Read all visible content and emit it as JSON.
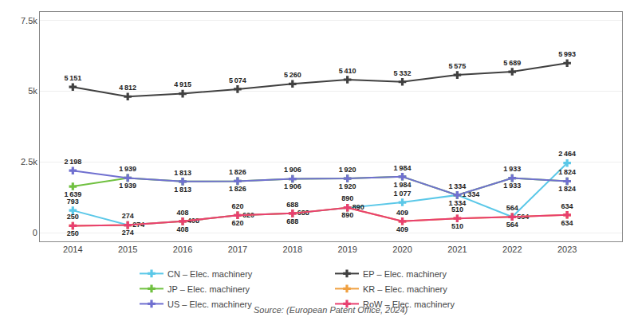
{
  "chart_data": {
    "type": "line",
    "annotations": [
      "Source: (European Patent Office, 2024)"
    ],
    "x": [
      2014,
      2015,
      2016,
      2017,
      2018,
      2019,
      2020,
      2021,
      2022,
      2023
    ],
    "xlim": [
      2013.4,
      2024.0
    ],
    "xticks": [
      2014,
      2015,
      2016,
      2017,
      2018,
      2019,
      2020,
      2021,
      2022,
      2023
    ],
    "ylim": [
      -300,
      7800
    ],
    "yticks": [
      0,
      {
        "value": 2500,
        "label": "2.5k"
      },
      {
        "value": 5000,
        "label": "5k"
      },
      {
        "value": 7500,
        "label": "7.5k"
      }
    ],
    "grid": true,
    "legend": "bottom",
    "data_labels": true,
    "marker": "plus",
    "line_style": "solid",
    "series": [
      {
        "name": "CN – Elec. machinery",
        "color": "#5BC8E8",
        "values": [
          793,
          274,
          408,
          620,
          688,
          890,
          1077,
          1334,
          564,
          2464
        ],
        "value_labels": [
          "793",
          "274",
          "408",
          "620",
          "688",
          "890",
          "1 077",
          "1 334",
          "564",
          "2 464"
        ]
      },
      {
        "name": "EP – Elec. machinery",
        "color": "#404040",
        "values": [
          5151,
          4812,
          4915,
          5074,
          5260,
          5410,
          5332,
          5575,
          5689,
          5993
        ],
        "value_labels": [
          "5 151",
          "4 812",
          "4 915",
          "5 074",
          "5 260",
          "5 410",
          "5 332",
          "5 575",
          "5 689",
          "5 993"
        ]
      },
      {
        "name": "JP – Elec. machinery",
        "color": "#70C040",
        "values": [
          1639,
          1939,
          1813,
          1826,
          1906,
          1920,
          1984,
          1334,
          1933,
          1824
        ],
        "value_labels": [
          "1 639",
          "1 939",
          "1 813",
          "1 826",
          "1 906",
          "1 920",
          "1 984",
          "1 334",
          "1 933",
          "1 824"
        ]
      },
      {
        "name": "KR – Elec. machinery",
        "color": "#F0A040",
        "values": [
          250,
          274,
          408,
          620,
          688,
          890,
          409,
          510,
          564,
          634
        ]
      },
      {
        "name": "US – Elec. machinery",
        "color": "#7070D0",
        "values": [
          2198,
          1939,
          1813,
          1826,
          1906,
          1920,
          1984,
          1334,
          1933,
          1824
        ],
        "value_labels": [
          "2 198",
          "1 939",
          "1 813",
          "1 826",
          "1 906",
          "1 920",
          "1 984",
          "1 334",
          "1 933",
          "1 824"
        ]
      },
      {
        "name": "RoW – Elec. machinery",
        "color": "#E84070",
        "values": [
          250,
          274,
          408,
          620,
          688,
          890,
          409,
          510,
          564,
          634
        ]
      }
    ]
  }
}
